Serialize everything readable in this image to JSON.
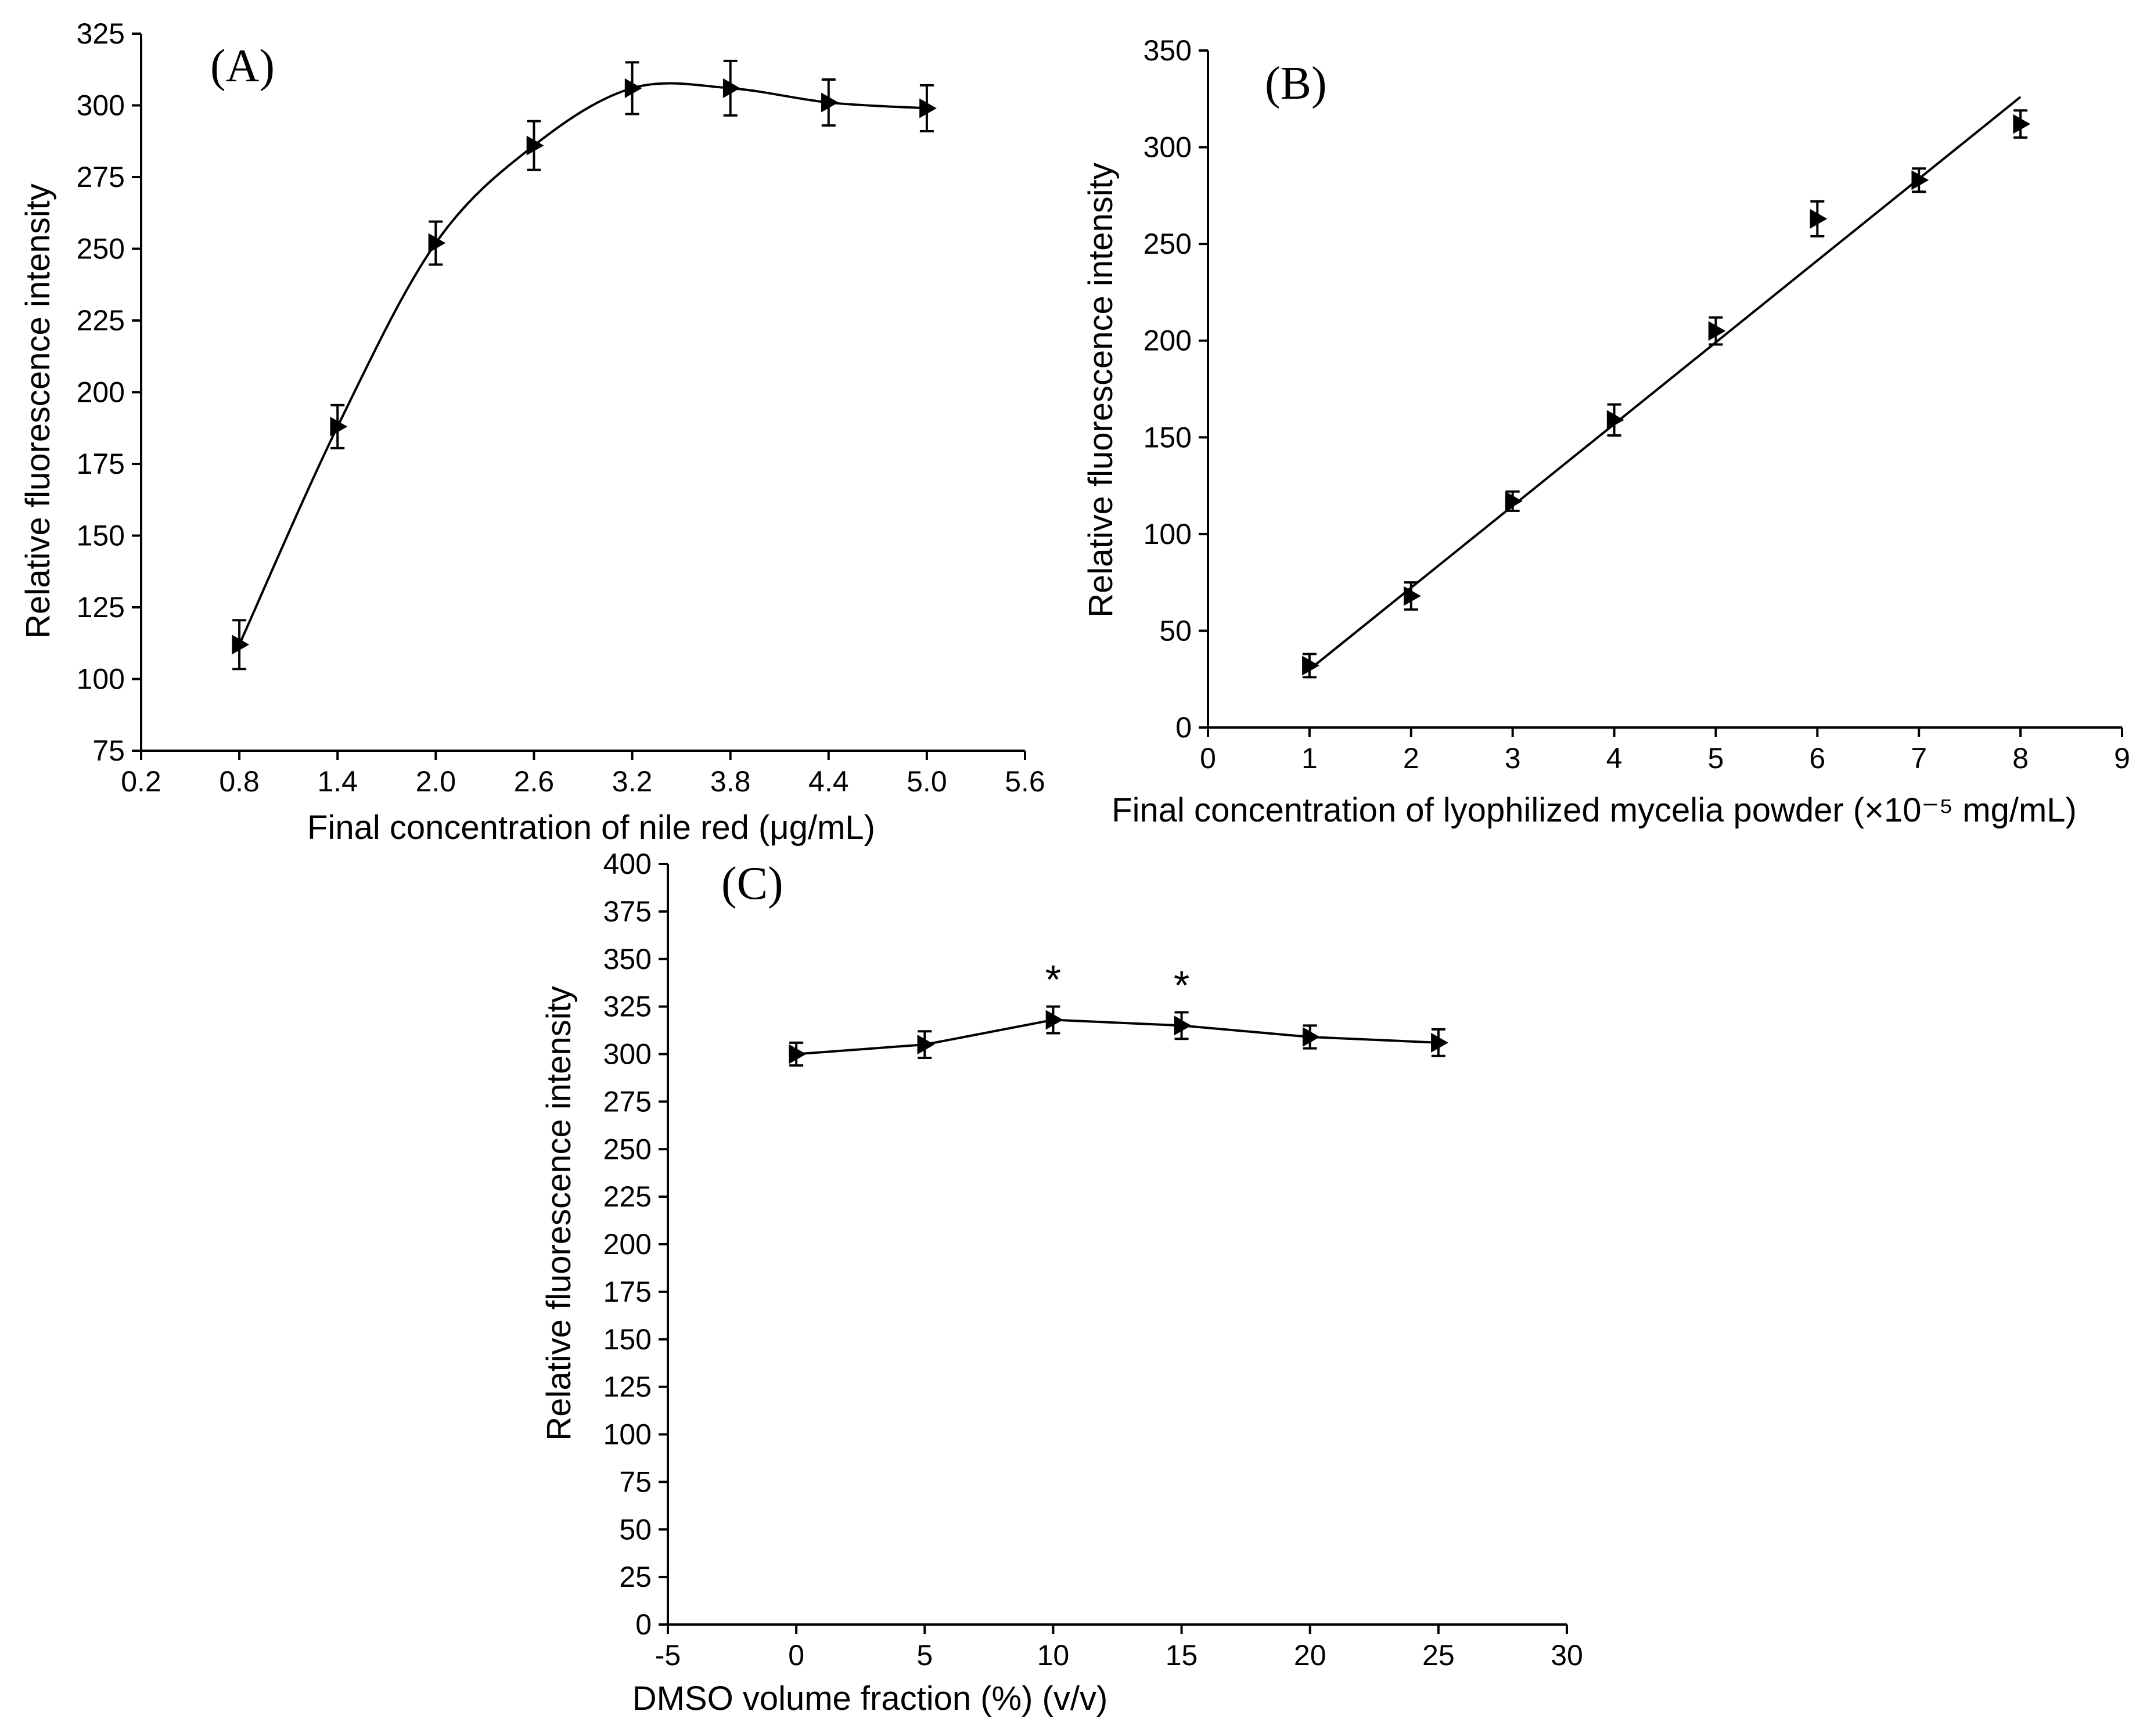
{
  "chart_data": [
    {
      "type": "line",
      "panel_label": "(A)",
      "xlabel": "Final concentration of nile red (μg/mL)",
      "ylabel": "Relative fluorescence intensity",
      "xlim": [
        0.2,
        5.6
      ],
      "ylim": [
        75,
        325
      ],
      "xticks": [
        "0.2",
        "0.8",
        "1.4",
        "2.0",
        "2.6",
        "3.2",
        "3.8",
        "4.4",
        "5.0",
        "5.6"
      ],
      "yticks": [
        "75",
        "100",
        "125",
        "150",
        "175",
        "200",
        "225",
        "250",
        "275",
        "300",
        "325"
      ],
      "series": [
        {
          "name": "Relative fluorescence intensity",
          "x": [
            0.8,
            1.4,
            2.0,
            2.6,
            3.2,
            3.8,
            4.4,
            5.0
          ],
          "y": [
            112,
            188,
            252,
            286,
            306,
            306,
            301,
            299
          ],
          "error": [
            8.5,
            7.5,
            7.5,
            8.5,
            9,
            9.5,
            8,
            8
          ],
          "marker": "right-triangle",
          "connect": "smooth"
        }
      ]
    },
    {
      "type": "scatter",
      "panel_label": "(B)",
      "xlabel": "Final concentration of lyophilized mycelia powder (×10⁻⁵ mg/mL)",
      "ylabel": "Relative fluorescence intensity",
      "xlim": [
        0,
        9
      ],
      "ylim": [
        0,
        350
      ],
      "xticks": [
        "0",
        "1",
        "2",
        "3",
        "4",
        "5",
        "6",
        "7",
        "8",
        "9"
      ],
      "yticks": [
        "0",
        "50",
        "100",
        "150",
        "200",
        "250",
        "300",
        "350"
      ],
      "series": [
        {
          "name": "Relative fluorescence intensity",
          "x": [
            1,
            2,
            3,
            4,
            5,
            6,
            7,
            8
          ],
          "y": [
            32,
            68,
            117,
            159,
            205,
            263,
            283,
            312
          ],
          "error": [
            6,
            7,
            5,
            8,
            7,
            9,
            6,
            7
          ],
          "marker": "right-triangle",
          "connect": "none"
        }
      ],
      "fit_line": {
        "x": [
          1,
          8
        ],
        "y": [
          30,
          326
        ]
      }
    },
    {
      "type": "line",
      "panel_label": "(C)",
      "xlabel": "DMSO volume fraction (%) (v/v)",
      "ylabel": "Relative fluorescence intensity",
      "xlim": [
        -5,
        30
      ],
      "ylim": [
        0,
        400
      ],
      "xticks": [
        "-5",
        "0",
        "5",
        "10",
        "15",
        "20",
        "25",
        "30"
      ],
      "yticks": [
        "0",
        "25",
        "50",
        "75",
        "100",
        "125",
        "150",
        "175",
        "200",
        "225",
        "250",
        "275",
        "300",
        "325",
        "350",
        "375",
        "400"
      ],
      "series": [
        {
          "name": "Relative fluorescence intensity",
          "x": [
            0,
            5,
            10,
            15,
            20,
            25
          ],
          "y": [
            300,
            305,
            318,
            315,
            309,
            306
          ],
          "error": [
            6,
            7,
            7,
            7,
            6,
            7
          ],
          "marker": "right-triangle",
          "connect": "straight"
        }
      ],
      "annotations": [
        {
          "x": 10,
          "y": 338,
          "text": "*"
        },
        {
          "x": 15,
          "y": 335,
          "text": "*"
        }
      ]
    }
  ]
}
